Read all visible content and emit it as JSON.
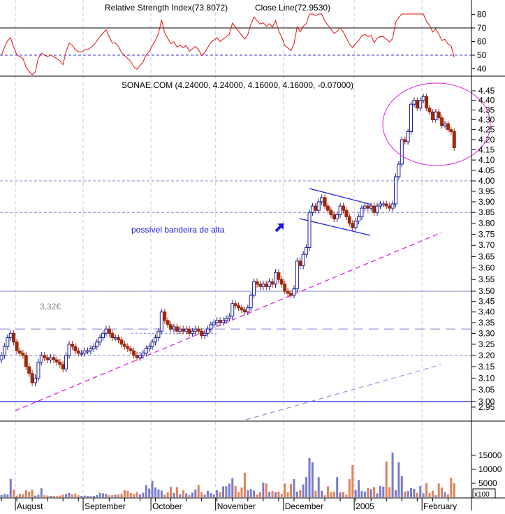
{
  "rsi_panel": {
    "title_a": "Relative Strength Index(73.8072)",
    "title_b": "Close Line(72.9530)",
    "y_ticks": [
      80,
      70,
      60,
      50,
      40
    ],
    "overbought": 70,
    "midline": 50,
    "period": 14
  },
  "price_panel": {
    "title": "SONAE.COM (4.24000, 4.24000, 4.16000, 4.16000, -0.07000)",
    "annotation_price": "3,32€",
    "annotation_flag": "possível bandeira de alta",
    "levels": {
      "solid_blue": 3.0,
      "dashed_320": 3.2,
      "dotted_330": 3.3,
      "dashed_332": 3.32,
      "solid_350": 3.5,
      "dashed_385": 3.85,
      "dashed_400": 4.0
    }
  },
  "volume_panel": {
    "y_ticks": [
      15000,
      10000,
      5000
    ],
    "unit": "x100"
  },
  "colors": {
    "up": "#1c1c96",
    "down": "#a0280a",
    "vol_up": "#7b7bcc",
    "vol_down": "#e0825a",
    "rsi": "#e01010",
    "trend": "#e020e0",
    "channel": "#8080d8"
  },
  "chart_data": {
    "type": "candlestick",
    "title": "SONAE.COM (4.24000, 4.24000, 4.16000, 4.16000, -0.07000)",
    "y_scale": "log",
    "ylim": [
      2.93,
      4.48
    ],
    "grid": "vertical dashed at month starts",
    "y_ticks": [
      2.95,
      3.0,
      3.05,
      3.1,
      3.15,
      3.2,
      3.25,
      3.3,
      3.35,
      3.4,
      3.45,
      3.5,
      3.55,
      3.6,
      3.65,
      3.7,
      3.75,
      3.8,
      3.85,
      3.9,
      3.95,
      4.0,
      4.05,
      4.1,
      4.15,
      4.2,
      4.25,
      4.3,
      4.35,
      4.4,
      4.45
    ],
    "x_ticks": [
      {
        "label": "August",
        "index": 5
      },
      {
        "label": "September",
        "index": 27
      },
      {
        "label": "October",
        "index": 49
      },
      {
        "label": "November",
        "index": 70
      },
      {
        "label": "December",
        "index": 92
      },
      {
        "label": "2005",
        "index": 115
      },
      {
        "label": "February",
        "index": 137
      }
    ],
    "close": [
      3.2,
      3.24,
      3.28,
      3.3,
      3.26,
      3.22,
      3.21,
      3.2,
      3.15,
      3.12,
      3.08,
      3.1,
      3.17,
      3.2,
      3.19,
      3.18,
      3.19,
      3.18,
      3.17,
      3.16,
      3.14,
      3.2,
      3.25,
      3.24,
      3.22,
      3.21,
      3.21,
      3.22,
      3.22,
      3.23,
      3.24,
      3.26,
      3.28,
      3.3,
      3.32,
      3.3,
      3.28,
      3.28,
      3.27,
      3.25,
      3.24,
      3.23,
      3.22,
      3.2,
      3.19,
      3.2,
      3.21,
      3.23,
      3.24,
      3.26,
      3.28,
      3.31,
      3.4,
      3.36,
      3.34,
      3.32,
      3.33,
      3.31,
      3.32,
      3.31,
      3.32,
      3.3,
      3.31,
      3.32,
      3.31,
      3.29,
      3.3,
      3.32,
      3.34,
      3.35,
      3.36,
      3.35,
      3.36,
      3.37,
      3.38,
      3.44,
      3.43,
      3.42,
      3.41,
      3.4,
      3.42,
      3.48,
      3.54,
      3.53,
      3.52,
      3.53,
      3.52,
      3.54,
      3.53,
      3.58,
      3.55,
      3.53,
      3.5,
      3.49,
      3.48,
      3.51,
      3.63,
      3.61,
      3.66,
      3.69,
      3.85,
      3.88,
      3.86,
      3.9,
      3.92,
      3.88,
      3.86,
      3.84,
      3.82,
      3.84,
      3.88,
      3.86,
      3.83,
      3.8,
      3.78,
      3.81,
      3.83,
      3.87,
      3.88,
      3.87,
      3.88,
      3.85,
      3.88,
      3.89,
      3.89,
      3.88,
      3.87,
      3.89,
      4.02,
      4.08,
      4.2,
      4.19,
      4.24,
      4.38,
      4.4,
      4.36,
      4.4,
      4.42,
      4.36,
      4.34,
      4.3,
      4.34,
      4.31,
      4.27,
      4.28,
      4.25,
      4.24,
      4.16
    ],
    "volume_x100": [
      800,
      1200,
      1000,
      6500,
      2800,
      600,
      1200,
      1100,
      2500,
      2000,
      2700,
      600,
      900,
      3200,
      700,
      600,
      500,
      500,
      400,
      600,
      900,
      1200,
      1500,
      1000,
      1300,
      700,
      500,
      600,
      500,
      400,
      500,
      800,
      1600,
      1400,
      1200,
      700,
      800,
      900,
      1000,
      1200,
      2500,
      2300,
      1500,
      1100,
      1900,
      1000,
      1600,
      4400,
      3100,
      5800,
      3500,
      2800,
      2400,
      900,
      1700,
      3800,
      1500,
      3600,
      1000,
      2500,
      1400,
      800,
      1700,
      2800,
      4400,
      1800,
      900,
      2300,
      1500,
      1000,
      2500,
      1800,
      3900,
      3900,
      4900,
      6800,
      4000,
      1800,
      3500,
      8800,
      2500,
      2900,
      2400,
      1000,
      1800,
      5200,
      4900,
      1900,
      2200,
      1800,
      2000,
      1200,
      4900,
      1800,
      4800,
      6500,
      2000,
      2500,
      4600,
      7200,
      14000,
      12500,
      2300,
      7200,
      2300,
      700,
      3900,
      1800,
      2000,
      7200,
      1700,
      1900,
      900,
      6500,
      11500,
      2600,
      6200,
      2200,
      2000,
      3300,
      2900,
      3700,
      1400,
      4000,
      3800,
      12800,
      3600,
      16000,
      2500,
      12500,
      7600,
      2000,
      2200,
      3300,
      3000,
      1600,
      4000,
      1400,
      5000,
      1500,
      2300,
      700,
      4900,
      3500,
      1800,
      1000,
      7000,
      5000
    ]
  }
}
